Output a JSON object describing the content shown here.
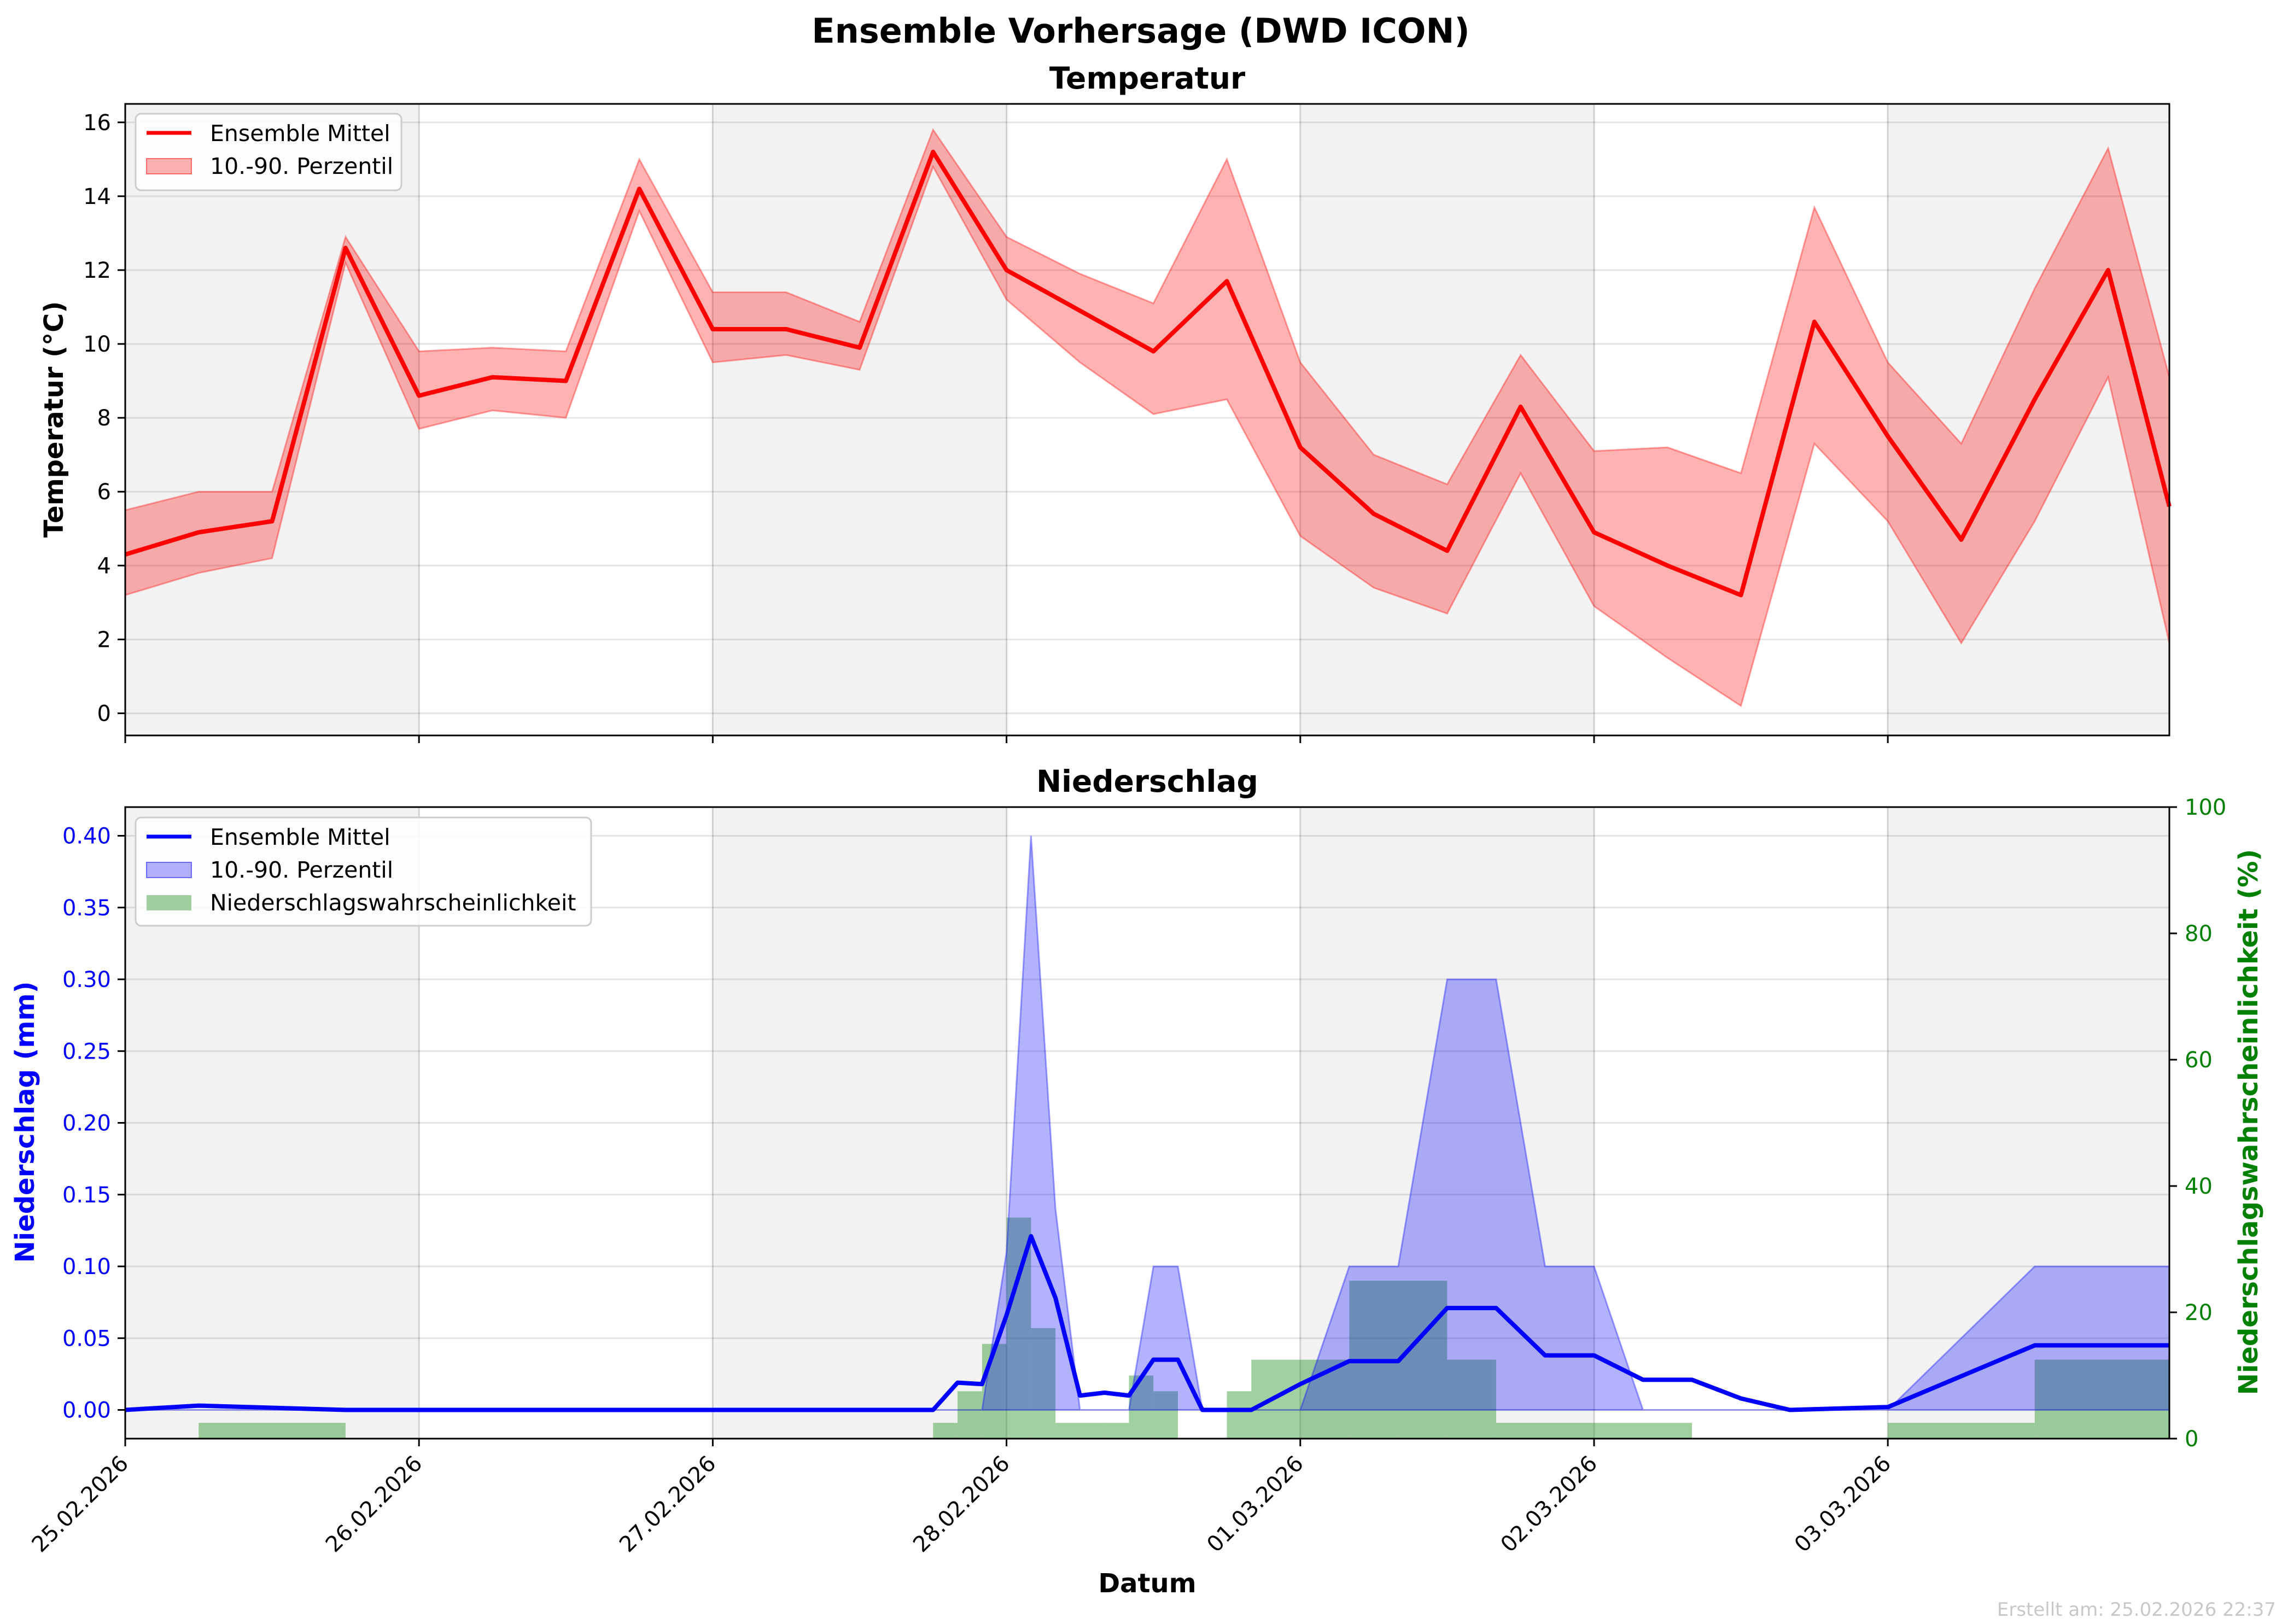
{
  "figure": {
    "suptitle": "Ensemble Vorhersage (DWD ICON)",
    "footer": "Erstellt am: 25.02.2026 22:37",
    "xlabel": "Datum",
    "date_ticks": [
      "25.02.2026",
      "26.02.2026",
      "27.02.2026",
      "28.02.2026",
      "01.03.2026",
      "02.03.2026",
      "03.03.2026"
    ]
  },
  "colors": {
    "temp_line": "#ff0000",
    "temp_band": "#ff0000",
    "precip_line": "#0000ff",
    "precip_band": "#0000ff",
    "probability": "#2e9a2e",
    "night_shade": "#f2f2f2"
  },
  "chart_data": [
    {
      "type": "line",
      "title": "Temperatur",
      "ylabel": "Temperatur (°C)",
      "ylim": [
        -0.6,
        16.5
      ],
      "yticks": [
        0,
        2,
        4,
        6,
        8,
        10,
        12,
        14,
        16
      ],
      "xlim": [
        "2026-02-25 00:00",
        "2026-03-03 23:00"
      ],
      "grid": true,
      "legend_position": "upper-left",
      "legend": [
        "Ensemble Mittel",
        "10.-90. Perzentil"
      ],
      "x": [
        "2026-02-25 00:00",
        "2026-02-25 06:00",
        "2026-02-25 12:00",
        "2026-02-25 18:00",
        "2026-02-26 00:00",
        "2026-02-26 06:00",
        "2026-02-26 12:00",
        "2026-02-26 18:00",
        "2026-02-27 00:00",
        "2026-02-27 06:00",
        "2026-02-27 12:00",
        "2026-02-27 18:00",
        "2026-02-28 00:00",
        "2026-02-28 06:00",
        "2026-02-28 12:00",
        "2026-02-28 18:00",
        "2026-03-01 00:00",
        "2026-03-01 06:00",
        "2026-03-01 12:00",
        "2026-03-01 18:00",
        "2026-03-02 00:00",
        "2026-03-02 06:00",
        "2026-03-02 12:00",
        "2026-03-02 18:00",
        "2026-03-03 00:00",
        "2026-03-03 06:00",
        "2026-03-03 12:00",
        "2026-03-03 18:00",
        "2026-03-03 23:00"
      ],
      "series": [
        {
          "name": "Ensemble Mittel",
          "values": [
            4.3,
            4.9,
            5.2,
            12.6,
            8.6,
            9.1,
            9.0,
            14.2,
            10.4,
            10.4,
            9.9,
            15.2,
            12.0,
            10.9,
            9.8,
            11.7,
            7.2,
            5.4,
            4.4,
            8.3,
            4.9,
            4.0,
            3.2,
            10.6,
            7.5,
            4.7,
            8.5,
            12.0,
            5.6
          ]
        },
        {
          "name": "10.-90. Perzentil (unten)",
          "values": [
            3.2,
            3.8,
            4.2,
            12.2,
            7.7,
            8.2,
            8.0,
            13.6,
            9.5,
            9.7,
            9.3,
            14.8,
            11.2,
            9.5,
            8.1,
            8.5,
            4.8,
            3.4,
            2.7,
            6.5,
            2.9,
            1.5,
            0.2,
            7.3,
            5.2,
            1.9,
            5.2,
            9.1,
            1.9
          ]
        },
        {
          "name": "10.-90. Perzentil (oben)",
          "values": [
            5.5,
            6.0,
            6.0,
            12.9,
            9.8,
            9.9,
            9.8,
            15.0,
            11.4,
            11.4,
            10.6,
            15.8,
            12.9,
            11.9,
            11.1,
            15.0,
            9.5,
            7.0,
            6.2,
            9.7,
            7.1,
            7.2,
            6.5,
            13.7,
            9.5,
            7.3,
            11.5,
            15.3,
            9.1
          ]
        }
      ]
    },
    {
      "type": "line",
      "title": "Niederschlag",
      "ylabel": "Niederschlag (mm)",
      "ylabel_right": "Niederschlagswahrscheinlichkeit (%)",
      "ylim": [
        -0.02,
        0.42
      ],
      "ylim_right": [
        0,
        100
      ],
      "yticks": [
        0.0,
        0.05,
        0.1,
        0.15,
        0.2,
        0.25,
        0.3,
        0.35,
        0.4
      ],
      "yticks_right": [
        0,
        20,
        40,
        60,
        80,
        100
      ],
      "xlim": [
        "2026-02-25 00:00",
        "2026-03-03 23:00"
      ],
      "grid": true,
      "legend_position": "upper-left",
      "legend": [
        "Ensemble Mittel",
        "10.-90. Perzentil",
        "Niederschlagswahrscheinlichkeit"
      ],
      "x": [
        "2026-02-25 00:00",
        "2026-02-25 06:00",
        "2026-02-25 18:00",
        "2026-02-27 18:00",
        "2026-02-27 20:00",
        "2026-02-27 22:00",
        "2026-02-28 00:00",
        "2026-02-28 02:00",
        "2026-02-28 04:00",
        "2026-02-28 06:00",
        "2026-02-28 08:00",
        "2026-02-28 10:00",
        "2026-02-28 12:00",
        "2026-02-28 14:00",
        "2026-02-28 16:00",
        "2026-02-28 18:00",
        "2026-02-28 20:00",
        "2026-03-01 00:00",
        "2026-03-01 04:00",
        "2026-03-01 08:00",
        "2026-03-01 12:00",
        "2026-03-01 16:00",
        "2026-03-01 20:00",
        "2026-03-02 00:00",
        "2026-03-02 04:00",
        "2026-03-02 08:00",
        "2026-03-02 12:00",
        "2026-03-02 16:00",
        "2026-03-03 00:00",
        "2026-03-03 12:00",
        "2026-03-03 23:00"
      ],
      "series": [
        {
          "name": "Ensemble Mittel",
          "values": [
            0.0,
            0.003,
            0.0,
            0.0,
            0.019,
            0.018,
            0.066,
            0.121,
            0.078,
            0.01,
            0.012,
            0.01,
            0.035,
            0.035,
            0.0,
            0.0,
            0.0,
            0.018,
            0.034,
            0.034,
            0.071,
            0.071,
            0.038,
            0.038,
            0.021,
            0.021,
            0.008,
            0.0,
            0.002,
            0.045,
            0.045
          ]
        },
        {
          "name": "10.-90. Perzentil (oben)",
          "values": [
            0.0,
            0.0,
            0.0,
            0.0,
            0.0,
            0.0,
            0.11,
            0.4,
            0.14,
            0.0,
            0.0,
            0.0,
            0.1,
            0.1,
            0.0,
            0.0,
            0.0,
            0.0,
            0.1,
            0.1,
            0.3,
            0.3,
            0.1,
            0.1,
            0.0,
            0.0,
            0.0,
            0.0,
            0.0,
            0.1,
            0.1
          ]
        },
        {
          "name": "Niederschlagswahrscheinlichkeit",
          "axis": "right",
          "values": [
            0,
            2.5,
            0,
            2.5,
            7.5,
            15,
            35,
            17.5,
            2.5,
            2.5,
            2.5,
            10,
            7.5,
            0,
            0,
            7.5,
            12.5,
            12.5,
            25,
            25,
            12.5,
            2.5,
            2.5,
            2.5,
            2.5,
            0,
            0,
            0,
            2.5,
            12.5,
            12.5
          ]
        }
      ]
    }
  ]
}
